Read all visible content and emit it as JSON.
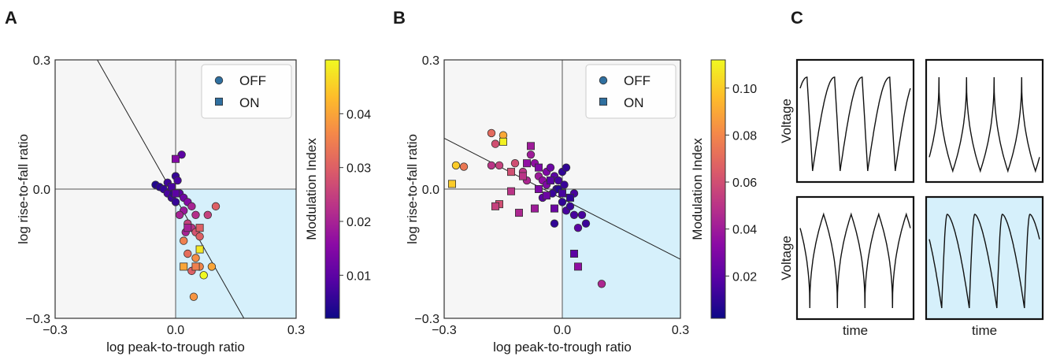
{
  "panels": {
    "a": "A",
    "b": "B",
    "c": "C"
  },
  "colors": {
    "quadrant_shade": "#d6f0fb",
    "quadrant_light": "#f6f6f6",
    "marker_edge": "#333333",
    "legend_marker": "#2f6f9f",
    "cmap": [
      "#0d0887",
      "#5302a3",
      "#8b0aa5",
      "#b83289",
      "#db5c68",
      "#f48849",
      "#febd2a",
      "#f0f921"
    ]
  },
  "chart_data": [
    {
      "type": "scatter",
      "title": "",
      "xlabel": "log peak-to-trough ratio",
      "ylabel": "log rise-to-fall ratio",
      "xlim": [
        -0.3,
        0.3
      ],
      "ylim": [
        -0.3,
        0.3
      ],
      "xticks": [
        "−0.3",
        "0.0",
        "0.3"
      ],
      "yticks": [
        "−0.3",
        "0.0",
        "0.3"
      ],
      "grid": false,
      "shaded_quadrant": "bottom-right",
      "fit_line": [
        [
          -0.195,
          0.3
        ],
        [
          0.17,
          -0.3
        ]
      ],
      "legend": {
        "placement": "top-right",
        "entries": [
          "OFF",
          "ON"
        ]
      },
      "colorbar": {
        "label": "Modulation Index",
        "range": [
          0.002,
          0.05
        ],
        "ticks": [
          0.01,
          0.02,
          0.03,
          0.04
        ],
        "tick_labels": [
          "0.01",
          "0.02",
          "0.03",
          "0.04"
        ]
      },
      "series": [
        {
          "name": "OFF",
          "marker": "circle",
          "points": [
            [
              -0.05,
              0.01,
              0.004
            ],
            [
              -0.04,
              0.005,
              0.005
            ],
            [
              -0.03,
              0.0,
              0.006
            ],
            [
              -0.02,
              -0.01,
              0.008
            ],
            [
              -0.01,
              -0.02,
              0.007
            ],
            [
              0.0,
              0.03,
              0.006
            ],
            [
              0.005,
              0.02,
              0.008
            ],
            [
              0.01,
              -0.01,
              0.01
            ],
            [
              0.02,
              -0.02,
              0.012
            ],
            [
              0.03,
              -0.03,
              0.015
            ],
            [
              0.04,
              -0.04,
              0.02
            ],
            [
              0.05,
              -0.06,
              0.022
            ],
            [
              0.015,
              0.08,
              0.01
            ],
            [
              0.02,
              -0.05,
              0.018
            ],
            [
              0.01,
              -0.06,
              0.02
            ],
            [
              0.03,
              -0.08,
              0.025
            ],
            [
              0.04,
              -0.09,
              0.023
            ],
            [
              0.05,
              -0.1,
              0.028
            ],
            [
              0.06,
              -0.11,
              0.03
            ],
            [
              0.02,
              -0.12,
              0.035
            ],
            [
              0.03,
              -0.15,
              0.032
            ],
            [
              0.05,
              -0.16,
              0.037
            ],
            [
              0.04,
              -0.19,
              0.03
            ],
            [
              0.06,
              -0.18,
              0.036
            ],
            [
              0.1,
              -0.04,
              0.03
            ],
            [
              0.08,
              -0.06,
              0.025
            ],
            [
              0.09,
              -0.18,
              0.04
            ],
            [
              0.07,
              -0.2,
              0.05
            ],
            [
              0.045,
              -0.25,
              0.038
            ],
            [
              -0.005,
              -0.01,
              0.005
            ],
            [
              0.0,
              -0.03,
              0.006
            ],
            [
              -0.02,
              0.015,
              0.007
            ],
            [
              0.025,
              -0.1,
              0.02
            ]
          ]
        },
        {
          "name": "ON",
          "marker": "square",
          "points": [
            [
              0.0,
              0.07,
              0.015
            ],
            [
              -0.01,
              0.005,
              0.008
            ],
            [
              0.03,
              -0.09,
              0.02
            ],
            [
              0.06,
              -0.09,
              0.03
            ],
            [
              0.06,
              -0.14,
              0.048
            ],
            [
              0.05,
              -0.18,
              0.035
            ],
            [
              0.02,
              -0.18,
              0.04
            ],
            [
              0.0,
              -0.01,
              0.01
            ]
          ]
        }
      ]
    },
    {
      "type": "scatter",
      "title": "",
      "xlabel": "log peak-to-trough ratio",
      "ylabel": "log rise-to-fall ratio",
      "xlim": [
        -0.3,
        0.3
      ],
      "ylim": [
        -0.3,
        0.3
      ],
      "xticks": [
        "−0.3",
        "0.0",
        "0.3"
      ],
      "yticks": [
        "−0.3",
        "0.0",
        "0.3"
      ],
      "grid": false,
      "shaded_quadrant": "bottom-right",
      "fit_line": [
        [
          -0.3,
          0.118
        ],
        [
          0.3,
          -0.163
        ]
      ],
      "legend": {
        "placement": "top-right",
        "entries": [
          "OFF",
          "ON"
        ]
      },
      "colorbar": {
        "label": "Modulation Index",
        "range": [
          0.002,
          0.112
        ],
        "ticks": [
          0.02,
          0.04,
          0.06,
          0.08,
          0.1
        ],
        "tick_labels": [
          "0.02",
          "0.04",
          "0.06",
          "0.08",
          "0.10"
        ]
      },
      "series": [
        {
          "name": "OFF",
          "marker": "circle",
          "points": [
            [
              -0.27,
              0.055,
              0.1
            ],
            [
              -0.25,
              0.052,
              0.075
            ],
            [
              -0.18,
              0.13,
              0.07
            ],
            [
              -0.17,
              0.105,
              0.06
            ],
            [
              -0.15,
              0.125,
              0.09
            ],
            [
              -0.18,
              0.055,
              0.05
            ],
            [
              -0.16,
              0.055,
              0.055
            ],
            [
              -0.12,
              0.06,
              0.06
            ],
            [
              -0.1,
              0.04,
              0.05
            ],
            [
              -0.09,
              0.02,
              0.045
            ],
            [
              -0.08,
              0.08,
              0.04
            ],
            [
              -0.07,
              0.06,
              0.035
            ],
            [
              -0.06,
              0.03,
              0.04
            ],
            [
              -0.05,
              0.02,
              0.035
            ],
            [
              -0.04,
              0.04,
              0.03
            ],
            [
              -0.03,
              0.05,
              0.025
            ],
            [
              -0.02,
              0.03,
              0.02
            ],
            [
              -0.01,
              0.02,
              0.015
            ],
            [
              0.0,
              0.04,
              0.01
            ],
            [
              0.005,
              0.01,
              0.012
            ],
            [
              -0.015,
              0.0,
              0.01
            ],
            [
              -0.025,
              -0.01,
              0.012
            ],
            [
              0.0,
              -0.03,
              0.01
            ],
            [
              0.01,
              -0.05,
              0.015
            ],
            [
              0.02,
              -0.04,
              0.012
            ],
            [
              0.03,
              -0.06,
              0.015
            ],
            [
              -0.02,
              -0.08,
              0.01
            ],
            [
              0.05,
              -0.06,
              0.015
            ],
            [
              0.06,
              -0.08,
              0.012
            ],
            [
              0.04,
              -0.09,
              0.02
            ],
            [
              0.1,
              -0.22,
              0.045
            ],
            [
              0.01,
              0.05,
              0.01
            ],
            [
              -0.04,
              0.01,
              0.03
            ],
            [
              0.03,
              -0.01,
              0.015
            ],
            [
              -0.05,
              -0.02,
              0.02
            ],
            [
              -0.01,
              0.0,
              0.008
            ]
          ]
        },
        {
          "name": "ON",
          "marker": "square",
          "points": [
            [
              -0.28,
              0.012,
              0.1
            ],
            [
              -0.15,
              0.11,
              0.11
            ],
            [
              -0.08,
              0.1,
              0.04
            ],
            [
              -0.09,
              0.06,
              0.035
            ],
            [
              -0.13,
              0.04,
              0.06
            ],
            [
              -0.1,
              0.03,
              0.05
            ],
            [
              -0.06,
              0.05,
              0.03
            ],
            [
              -0.03,
              0.02,
              0.02
            ],
            [
              -0.16,
              -0.035,
              0.06
            ],
            [
              -0.17,
              -0.04,
              0.055
            ],
            [
              -0.13,
              -0.005,
              0.05
            ],
            [
              -0.11,
              -0.055,
              0.045
            ],
            [
              -0.07,
              -0.045,
              0.04
            ],
            [
              -0.02,
              -0.045,
              0.025
            ],
            [
              0.02,
              -0.02,
              0.01
            ],
            [
              0.03,
              -0.15,
              0.02
            ],
            [
              0.04,
              -0.18,
              0.035
            ],
            [
              -0.06,
              0.0,
              0.03
            ],
            [
              0.0,
              -0.01,
              0.015
            ],
            [
              -0.04,
              -0.015,
              0.025
            ]
          ]
        }
      ]
    },
    {
      "type": "line",
      "title": "",
      "xlabel": "time",
      "ylabel": "Voltage",
      "subplots": [
        {
          "position": "top-left",
          "shape": "slow-rise-fast-fall",
          "shaded": false,
          "cycles": 4
        },
        {
          "position": "top-right",
          "shape": "sharp-peak-broad-trough",
          "shaded": false,
          "cycles": 4
        },
        {
          "position": "bottom-left",
          "shape": "broad-peak-sharp-trough",
          "shaded": false,
          "cycles": 4
        },
        {
          "position": "bottom-right",
          "shape": "fast-rise-slow-fall",
          "shaded": true,
          "cycles": 4
        }
      ]
    }
  ]
}
